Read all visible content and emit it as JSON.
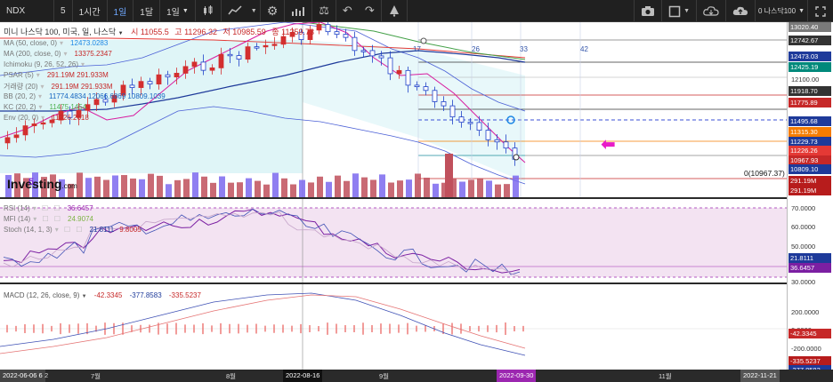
{
  "toolbar": {
    "symbol": "NDX",
    "interval_5": "5",
    "interval_1h": "1시간",
    "interval_1d": "1일",
    "interval_1w": "1달",
    "interval_1m": "1일",
    "indicator_label": "0 나스닥100"
  },
  "chart": {
    "title_line": "미니 나스닥 100, 미국, 일, 나스닥",
    "ohlc": {
      "h_label": "시",
      "h": "11055.5",
      "c_label": "고",
      "c": "11296.32",
      "l_label": "저",
      "l": "10985.59",
      "last_label": "종",
      "last": "11?59.73"
    },
    "legends": [
      {
        "name": "MA (50, close, 0)",
        "value": "12473.0283",
        "color": "#1e88e5"
      },
      {
        "name": "MA (200, close, 0)",
        "value": "13375.2347",
        "color": "#c62828"
      },
      {
        "name": "Ichimoku (9, 26, 52, 26)",
        "value": "",
        "color": "#7b7b7b"
      },
      {
        "name": "PSAR (5)",
        "value": "291.19M  291.933M",
        "color": "#c62828"
      },
      {
        "name": "거래량 (20)",
        "value": "291.19M  291.933M",
        "color": "#c62828"
      },
      {
        "name": "BB (20, 2)",
        "value": "11774.4834  12066.6869  10809.1039",
        "color": "#1565c0"
      },
      {
        "name": "KC (20, 2)",
        "value": "11475.1454",
        "color": "#4caf50"
      },
      {
        "name": "Env (20, 0)",
        "value": "11226.2618",
        "color": "#c62828"
      }
    ],
    "top_numbers": [
      "17",
      "26",
      "33",
      "42"
    ],
    "zero_label": "0(10967.37)",
    "five_label": "5",
    "watermark": "Investing",
    "watermark_suffix": ".com"
  },
  "price_scale": {
    "ticks": [
      {
        "label": "12100.00"
      },
      {
        "label": "11500.00"
      }
    ],
    "badges": [
      {
        "label": "13020.40",
        "color": "#7a7a7a"
      },
      {
        "label": "12742.67",
        "color": "#333333"
      },
      {
        "label": "12473.03",
        "color": "#1e3a9a"
      },
      {
        "label": "12425.19",
        "color": "#00897b"
      },
      {
        "label": "11918.70",
        "color": "#333333"
      },
      {
        "label": "11775.89",
        "color": "#c62828"
      },
      {
        "label": "11495.68",
        "color": "#1e3a9a"
      },
      {
        "label": "11315.30",
        "color": "#f57c00"
      },
      {
        "label": "11229.73",
        "color": "#1e3a9a"
      },
      {
        "label": "11226.26",
        "color": "#e53935"
      },
      {
        "label": "10967.93",
        "color": "#c62828"
      },
      {
        "label": "10809.10",
        "color": "#1e3a9a"
      },
      {
        "label": "291.19M",
        "color": "#b71c1c"
      },
      {
        "label": "291.19M",
        "color": "#b71c1c"
      }
    ]
  },
  "oscillator": {
    "legends": [
      {
        "name": "RSI (14)",
        "value": "36.6457",
        "color": "#9c27b0"
      },
      {
        "name": "MFI (14)",
        "value": "24.9074",
        "color": "#7cb342"
      },
      {
        "name": "Stoch (14, 1, 3)",
        "value": "21.8111",
        "value2": "9.8005",
        "color": "#1e3a9a"
      }
    ],
    "scale": [
      "70.0000",
      "60.0000",
      "50.0000",
      "40.0000",
      "30.0000"
    ],
    "badges": [
      {
        "label": "21.8111",
        "color": "#1e3a9a"
      },
      {
        "label": "36.6457",
        "color": "#7b1fa2"
      }
    ]
  },
  "macd": {
    "legend": {
      "name": "MACD (12, 26, close, 9)",
      "v1": "-42.3345",
      "v2": "-377.8583",
      "v3": "-335.5237"
    },
    "scale": [
      "200.0000",
      "0.0000",
      "-200.0000"
    ],
    "badges": [
      {
        "label": "-42.3345",
        "color": "#c62828"
      },
      {
        "label": "-335.5237",
        "color": "#b71c1c"
      },
      {
        "label": "-377.8583",
        "color": "#1e3a9a"
      }
    ]
  },
  "time_axis": {
    "labels": [
      "2022-06-06",
      "6",
      "2",
      "7월",
      "8월",
      "2022-08-16",
      "9월",
      "2022-09-30",
      "11월",
      "2022-11-21"
    ]
  }
}
